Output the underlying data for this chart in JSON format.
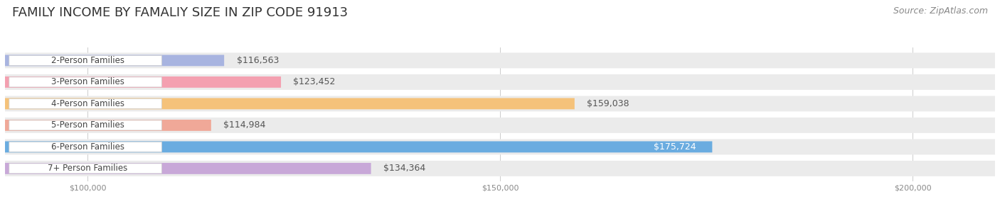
{
  "title": "FAMILY INCOME BY FAMALIY SIZE IN ZIP CODE 91913",
  "source": "Source: ZipAtlas.com",
  "categories": [
    "2-Person Families",
    "3-Person Families",
    "4-Person Families",
    "5-Person Families",
    "6-Person Families",
    "7+ Person Families"
  ],
  "values": [
    116563,
    123452,
    159038,
    114984,
    175724,
    134364
  ],
  "bar_colors": [
    "#a8b4e0",
    "#f4a0b0",
    "#f5c27a",
    "#f0a898",
    "#6aace0",
    "#c8a8d8"
  ],
  "label_colors": [
    "#555555",
    "#555555",
    "#555555",
    "#555555",
    "#ffffff",
    "#555555"
  ],
  "xlim_min": 90000,
  "xlim_max": 210000,
  "xticks": [
    100000,
    150000,
    200000
  ],
  "xtick_labels": [
    "$100,000",
    "$150,000",
    "$200,000"
  ],
  "background_color": "#ffffff",
  "title_fontsize": 13,
  "source_fontsize": 9,
  "bar_label_fontsize": 9,
  "category_fontsize": 8.5
}
